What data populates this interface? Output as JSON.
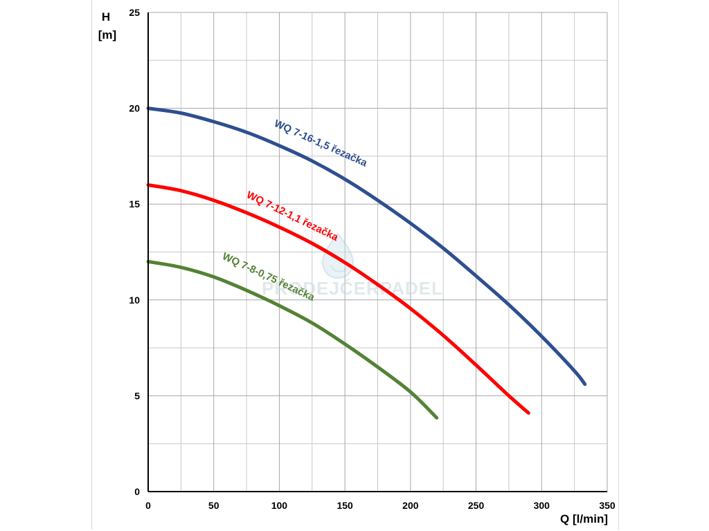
{
  "watermark": {
    "text": "PRODEJČERPADEL"
  },
  "chart_data": {
    "type": "line",
    "title": "",
    "xlabel": "Q [l/min]",
    "ylabel_lines": [
      "H",
      "[m]"
    ],
    "xlim": [
      0,
      350
    ],
    "ylim": [
      0,
      25
    ],
    "x_ticks": [
      0,
      50,
      100,
      150,
      200,
      250,
      300,
      350
    ],
    "y_ticks": [
      0,
      5,
      10,
      15,
      20,
      25
    ],
    "x_minor_step": 25,
    "y_minor_step": 2.5,
    "grid": true,
    "legend": "none (labels placed on curves)",
    "series": [
      {
        "name": "WQ 7-16-1,5 řezačka",
        "color": "#2e4f8f",
        "x": [
          0,
          25,
          50,
          75,
          100,
          125,
          150,
          175,
          200,
          225,
          250,
          275,
          300,
          325,
          333
        ],
        "y": [
          20.0,
          19.75,
          19.3,
          18.75,
          18.05,
          17.25,
          16.3,
          15.2,
          14.0,
          12.7,
          11.25,
          9.75,
          8.1,
          6.3,
          5.6
        ]
      },
      {
        "name": "WQ 7-12-1,1 řezačka",
        "color": "#ff0000",
        "x": [
          0,
          25,
          50,
          75,
          100,
          125,
          150,
          175,
          200,
          225,
          250,
          275,
          290
        ],
        "y": [
          16.0,
          15.7,
          15.2,
          14.55,
          13.8,
          12.95,
          11.95,
          10.8,
          9.55,
          8.15,
          6.6,
          5.0,
          4.1
        ]
      },
      {
        "name": "WQ 7-8-0,75 řezačka",
        "color": "#548235",
        "x": [
          0,
          25,
          50,
          75,
          100,
          125,
          150,
          175,
          200,
          220
        ],
        "y": [
          12.0,
          11.7,
          11.2,
          10.5,
          9.7,
          8.8,
          7.7,
          6.5,
          5.2,
          3.85
        ]
      }
    ]
  }
}
